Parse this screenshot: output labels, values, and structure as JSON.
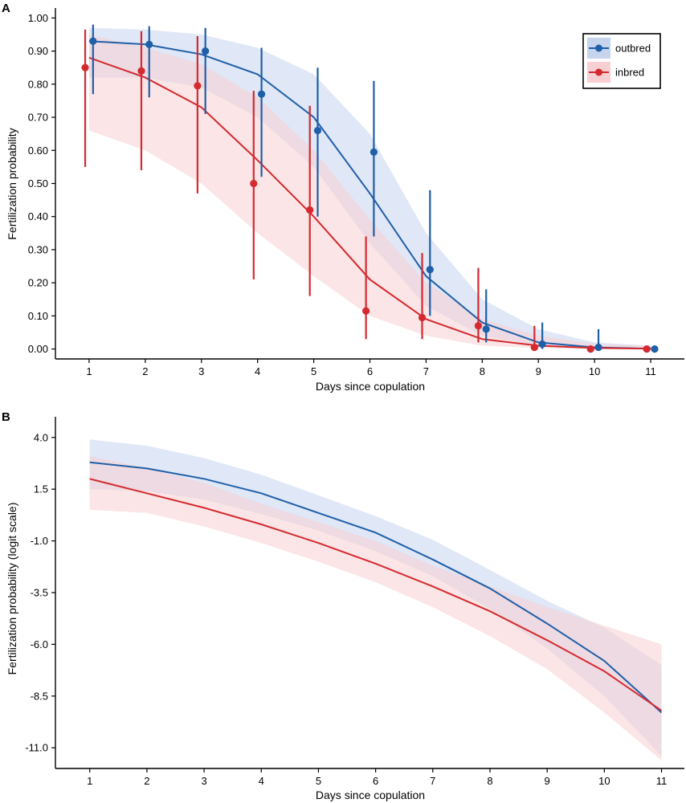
{
  "chart_data": [
    {
      "panel": "A",
      "type": "line",
      "xlabel": "Days since copulation",
      "ylabel": "Fertilization probability",
      "xlim": [
        0.4,
        11.6
      ],
      "ylim": [
        -0.03,
        1.03
      ],
      "x_ticks": [
        1,
        2,
        3,
        4,
        5,
        6,
        7,
        8,
        9,
        10,
        11
      ],
      "x_tick_labels": [
        "1",
        "2",
        "3",
        "4",
        "5",
        "6",
        "7",
        "8",
        "9",
        "10",
        "11"
      ],
      "y_ticks": [
        0,
        0.1,
        0.2,
        0.3,
        0.4,
        0.5,
        0.6,
        0.7,
        0.8,
        0.9,
        1.0
      ],
      "y_tick_labels": [
        "0.00",
        "0.10",
        "0.20",
        "0.30",
        "0.40",
        "0.50",
        "0.60",
        "0.70",
        "0.80",
        "0.90",
        "1.00"
      ],
      "grid": false,
      "legend": {
        "position": "top-right",
        "entries": [
          "outbred",
          "inbred"
        ]
      },
      "x": [
        1,
        2,
        3,
        4,
        5,
        6,
        7,
        8,
        9,
        10,
        11
      ],
      "series": [
        {
          "name": "outbred",
          "color": "#1f5fa8",
          "band_color": "#c6d4ee",
          "point_offset": 0.07,
          "fit": [
            0.93,
            0.92,
            0.89,
            0.83,
            0.7,
            0.47,
            0.22,
            0.08,
            0.02,
            0.005,
            0.001
          ],
          "fit_lower": [
            0.82,
            0.82,
            0.79,
            0.7,
            0.55,
            0.32,
            0.13,
            0.04,
            0.01,
            0.001,
            0.0
          ],
          "fit_upper": [
            0.97,
            0.965,
            0.95,
            0.91,
            0.83,
            0.65,
            0.35,
            0.15,
            0.06,
            0.02,
            0.01
          ],
          "points": [
            0.93,
            0.92,
            0.9,
            0.77,
            0.66,
            0.595,
            0.24,
            0.06,
            0.015,
            0.005,
            0.0
          ],
          "points_lower": [
            0.77,
            0.76,
            0.71,
            0.52,
            0.4,
            0.34,
            0.1,
            0.02,
            0.0,
            0.0,
            0.0
          ],
          "points_upper": [
            0.98,
            0.975,
            0.97,
            0.91,
            0.85,
            0.81,
            0.48,
            0.18,
            0.08,
            0.06,
            0.0
          ]
        },
        {
          "name": "inbred",
          "color": "#d42a2f",
          "band_color": "#f8cfd2",
          "point_offset": -0.07,
          "fit": [
            0.88,
            0.82,
            0.73,
            0.57,
            0.4,
            0.21,
            0.09,
            0.03,
            0.01,
            0.003,
            0.001
          ],
          "fit_lower": [
            0.66,
            0.6,
            0.5,
            0.35,
            0.22,
            0.1,
            0.04,
            0.01,
            0.003,
            0.0,
            0.0
          ],
          "fit_upper": [
            0.95,
            0.91,
            0.86,
            0.76,
            0.6,
            0.39,
            0.2,
            0.09,
            0.04,
            0.015,
            0.008
          ],
          "points": [
            0.85,
            0.84,
            0.795,
            0.5,
            0.42,
            0.115,
            0.095,
            0.07,
            0.005,
            0.0,
            0.0
          ],
          "points_lower": [
            0.55,
            0.54,
            0.47,
            0.21,
            0.16,
            0.03,
            0.03,
            0.02,
            0.0,
            0.0,
            0.0
          ],
          "points_upper": [
            0.965,
            0.96,
            0.945,
            0.78,
            0.735,
            0.34,
            0.29,
            0.245,
            0.07,
            0.0,
            0.0
          ]
        }
      ]
    },
    {
      "panel": "B",
      "type": "line",
      "xlabel": "Days since copulation",
      "ylabel": "Fertilization probability (logit scale)",
      "xlim": [
        0.4,
        11.4
      ],
      "ylim": [
        -12.0,
        5.0
      ],
      "x_ticks": [
        1,
        2,
        3,
        4,
        5,
        6,
        7,
        8,
        9,
        10,
        11
      ],
      "x_tick_labels": [
        "1",
        "2",
        "3",
        "4",
        "5",
        "6",
        "7",
        "8",
        "9",
        "10",
        "11"
      ],
      "y_ticks": [
        4.0,
        1.5,
        -1.0,
        -3.5,
        -6.0,
        -8.5,
        -11.0
      ],
      "y_tick_labels": [
        "4.0",
        "1.5",
        "-1.0",
        "-3.5",
        "-6.0",
        "-8.5",
        "-11.0"
      ],
      "grid": false,
      "x": [
        1,
        2,
        3,
        4,
        5,
        6,
        7,
        8,
        9,
        10,
        11
      ],
      "series": [
        {
          "name": "outbred",
          "color": "#1f5fa8",
          "band_color": "#c6d4ee",
          "fit": [
            2.8,
            2.5,
            2.0,
            1.3,
            0.35,
            -0.6,
            -1.9,
            -3.3,
            -5.0,
            -6.8,
            -9.3
          ],
          "fit_lower": [
            1.5,
            1.4,
            1.0,
            0.3,
            -0.5,
            -1.5,
            -2.7,
            -4.3,
            -6.2,
            -8.5,
            -11.4
          ],
          "fit_upper": [
            3.9,
            3.6,
            3.0,
            2.2,
            1.2,
            0.2,
            -0.95,
            -2.4,
            -3.9,
            -5.2,
            -7.0
          ]
        },
        {
          "name": "inbred",
          "color": "#d42a2f",
          "band_color": "#f8cfd2",
          "fit": [
            2.0,
            1.3,
            0.6,
            -0.2,
            -1.1,
            -2.1,
            -3.2,
            -4.4,
            -5.8,
            -7.3,
            -9.2
          ],
          "fit_lower": [
            0.5,
            0.35,
            -0.3,
            -1.1,
            -2.0,
            -3.0,
            -4.2,
            -5.6,
            -7.2,
            -9.3,
            -11.6
          ],
          "fit_upper": [
            3.1,
            2.5,
            1.8,
            0.8,
            -0.1,
            -1.0,
            -2.2,
            -3.2,
            -4.2,
            -5.1,
            -6.0
          ]
        }
      ]
    }
  ],
  "labels": {
    "panel_a_letter": "A",
    "panel_b_letter": "B"
  }
}
